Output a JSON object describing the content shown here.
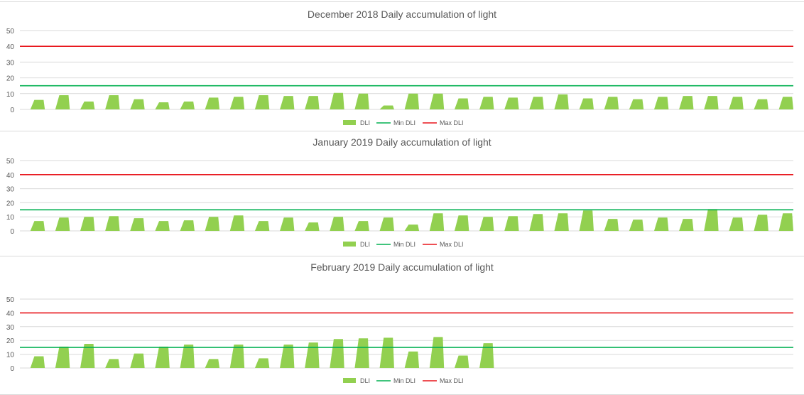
{
  "chart_data": [
    {
      "type": "area",
      "title": "December 2018 Daily accumulation of light",
      "ylim": [
        0,
        50
      ],
      "yticks": [
        0,
        10,
        20,
        30,
        40,
        50
      ],
      "grid": true,
      "legend_position": "bottom",
      "legend": [
        "DLI",
        "Min DLI",
        "Max DLI"
      ],
      "min_dli": 15,
      "max_dli": 40,
      "days": 31,
      "series": [
        {
          "name": "DLI",
          "values": [
            6,
            9,
            5,
            9,
            6.5,
            4.5,
            5,
            7.5,
            8,
            9,
            8.5,
            8.5,
            10.5,
            10,
            2.5,
            10,
            10,
            7,
            8,
            7.5,
            8,
            9.5,
            7,
            8,
            6.5,
            8,
            8.5,
            8.5,
            8,
            6.5,
            8
          ]
        }
      ]
    },
    {
      "type": "area",
      "title": "January 2019 Daily accumulation of light",
      "ylim": [
        0,
        50
      ],
      "yticks": [
        0,
        10,
        20,
        30,
        40,
        50
      ],
      "grid": true,
      "legend_position": "bottom",
      "legend": [
        "DLI",
        "Min DLI",
        "Max DLI"
      ],
      "min_dli": 15,
      "max_dli": 40,
      "days": 31,
      "series": [
        {
          "name": "DLI",
          "values": [
            7,
            9.5,
            10,
            10.5,
            9,
            7,
            7.5,
            10,
            11,
            7,
            9.5,
            6,
            10,
            7,
            9.5,
            4.5,
            12.5,
            11,
            10,
            10.5,
            12,
            12.5,
            14.5,
            8.5,
            8,
            9.5,
            8.5,
            15.5,
            9.5,
            11.5,
            12.5
          ]
        }
      ]
    },
    {
      "type": "area",
      "title": "February 2019 Daily accumulation of light",
      "ylim": [
        0,
        50
      ],
      "yticks": [
        0,
        10,
        20,
        30,
        40,
        50
      ],
      "grid": true,
      "legend_position": "bottom",
      "legend": [
        "DLI",
        "Min DLI",
        "Max DLI"
      ],
      "min_dli": 15,
      "max_dli": 40,
      "days": 31,
      "series": [
        {
          "name": "DLI",
          "values": [
            8.5,
            15.5,
            17.5,
            6.5,
            10.5,
            15.5,
            17,
            6.5,
            17,
            7,
            17,
            18.5,
            21,
            21.5,
            22,
            12,
            22.5,
            9,
            18
          ]
        }
      ]
    }
  ],
  "colors": {
    "dli": "#92d050",
    "min_dli": "#00b050",
    "max_dli": "#e8151b",
    "grid": "#d9d9d9",
    "text": "#595959"
  }
}
